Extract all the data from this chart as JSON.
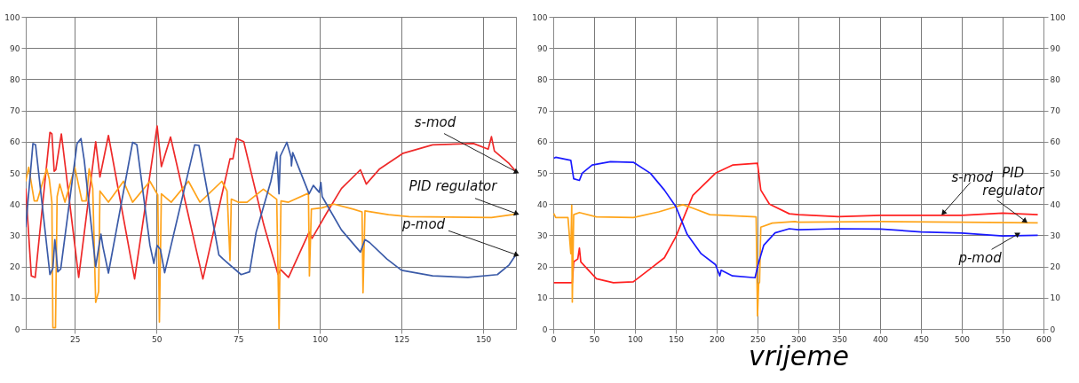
{
  "chart_data": [
    {
      "type": "line",
      "xlim": [
        10,
        160
      ],
      "xticks": [
        25,
        50,
        75,
        100,
        125,
        150
      ],
      "ylim": [
        0,
        100
      ],
      "yticks": [
        0,
        10,
        20,
        30,
        40,
        50,
        60,
        70,
        80,
        90,
        100
      ],
      "grid": true,
      "series": [
        {
          "color": "#ee2a2a",
          "x": [
            10,
            11.7,
            12.9,
            17.4,
            18,
            18.7,
            19.2,
            20.9,
            26.2,
            31.4,
            32.7,
            35.3,
            43.3,
            50.2,
            51.5,
            54.3,
            64.2,
            72.5,
            73.4,
            74.5,
            76.7,
            82.8,
            87.2,
            88,
            90.4,
            96.7,
            97.6,
            102,
            106.6,
            112.4,
            114.2,
            118.3,
            125.5,
            134.5,
            147,
            151.5,
            152.5,
            153.4,
            157.9,
            160
          ],
          "values": [
            45,
            17,
            16.5,
            63,
            62.5,
            50.5,
            51,
            62.5,
            16.5,
            60,
            48.7,
            62,
            16,
            65,
            52,
            61.5,
            16,
            54.5,
            54.5,
            61,
            60,
            33.5,
            17.5,
            19,
            16.5,
            31,
            29,
            37,
            45,
            51,
            46.4,
            51.3,
            56.3,
            59,
            59.4,
            57.6,
            61.6,
            57,
            53,
            50.4
          ]
        },
        {
          "color": "#ffa31a",
          "x": [
            10,
            10.9,
            12.6,
            13.5,
            16.4,
            17.2,
            18,
            18.3,
            19.1,
            19.6,
            20.4,
            22,
            25,
            27.2,
            28.5,
            29.4,
            30.5,
            31.4,
            32.3,
            32.7,
            35.3,
            39.9,
            42.7,
            48,
            50.4,
            50.9,
            51.5,
            54.5,
            59.8,
            63.3,
            70,
            71.6,
            72.5,
            72.9,
            75,
            77.7,
            82.7,
            86.8,
            87.5,
            88.1,
            90.4,
            96.5,
            96.8,
            97.4,
            100.7,
            104.3,
            110.2,
            112.9,
            113.2,
            113.8,
            121,
            127.3,
            152.5,
            158.8,
            160
          ],
          "values": [
            47.3,
            51.8,
            41,
            41,
            51.3,
            48,
            40.6,
            0.4,
            0.4,
            42.4,
            46.4,
            40.6,
            51.8,
            41,
            41,
            51.3,
            45,
            8.5,
            12,
            44.2,
            40.6,
            47.3,
            40.6,
            47.3,
            42.9,
            2.2,
            43.3,
            40.6,
            47.3,
            40.6,
            47.3,
            44.2,
            21.9,
            41.6,
            40.6,
            40.6,
            44.8,
            41.5,
            0,
            41,
            40.6,
            43.5,
            17,
            38.4,
            38.8,
            40,
            38.4,
            37.5,
            11.6,
            37.8,
            36.6,
            36,
            35.7,
            36.6,
            37
          ]
        },
        {
          "color": "#3b5ba8",
          "x": [
            10,
            12.2,
            13,
            17.4,
            18.3,
            18.9,
            19.3,
            19.8,
            20.7,
            25.7,
            26.9,
            27.9,
            31.4,
            33,
            33.6,
            35.3,
            42.7,
            44,
            48,
            49.2,
            50.2,
            51.2,
            52.5,
            61.7,
            63,
            69.1,
            70.4,
            75.9,
            78.5,
            80.5,
            85,
            86.8,
            87.5,
            87.9,
            89.9,
            91.2,
            91.3,
            91.7,
            96.7,
            98,
            99.8,
            100.3,
            100.7,
            106.6,
            112.4,
            113.8,
            115.2,
            120.5,
            125,
            134.5,
            145.3,
            154.3,
            157.9,
            160
          ],
          "values": [
            32.6,
            59.4,
            59,
            17.4,
            19.5,
            28.6,
            24.6,
            18.3,
            19.2,
            59.4,
            61,
            54,
            20,
            30.4,
            26.4,
            17.9,
            59.8,
            59,
            26.8,
            21,
            26.8,
            25.5,
            18,
            59,
            58.8,
            23.7,
            22.4,
            17.4,
            18.3,
            31,
            47.3,
            56.7,
            43.3,
            55.4,
            59.8,
            55,
            52.2,
            56.5,
            43.3,
            46,
            43.8,
            46.9,
            42.4,
            31.7,
            24.6,
            28.6,
            27.7,
            22.4,
            18.8,
            17,
            16.5,
            17.4,
            20.5,
            23.8
          ]
        }
      ],
      "annotations": [
        {
          "text": "s-mod",
          "x": 160,
          "y": 50.4
        },
        {
          "text": "PID regulator",
          "x": 160,
          "y": 37
        },
        {
          "text": "p-mod",
          "x": 160,
          "y": 23.8
        }
      ]
    },
    {
      "type": "line",
      "xlabel": "vrijeme",
      "xlim": [
        0,
        600
      ],
      "xticks": [
        0,
        50,
        100,
        150,
        200,
        250,
        300,
        350,
        400,
        450,
        500,
        550,
        600
      ],
      "ylim": [
        0,
        100
      ],
      "yticks": [
        0,
        10,
        20,
        30,
        40,
        50,
        60,
        70,
        80,
        90,
        100
      ],
      "y2lim": [
        0,
        100
      ],
      "y2ticks": [
        0,
        10,
        20,
        30,
        40,
        50,
        60,
        70,
        80,
        90,
        100
      ],
      "grid": true,
      "series": [
        {
          "color": "#ff2020",
          "x": [
            0.7,
            23.3,
            25,
            30,
            32,
            33.7,
            52.8,
            73.6,
            97.9,
            118.8,
            136,
            150,
            170.8,
            198.6,
            219.4,
            250,
            254,
            264.6,
            288.9,
            300,
            349,
            401,
            452,
            500,
            550,
            593
          ],
          "values": [
            14.8,
            14.8,
            21.5,
            22.4,
            25.9,
            21.5,
            16.1,
            14.8,
            15.1,
            19.3,
            22.8,
            29.5,
            42.8,
            49.9,
            52.5,
            53.1,
            44.5,
            40,
            36.9,
            36.6,
            36,
            36.4,
            36.4,
            36.4,
            37.1,
            36.6
          ]
        },
        {
          "color": "#ffa51a",
          "x": [
            0.7,
            3,
            18,
            21.5,
            22.6,
            23.3,
            25,
            32,
            52.8,
            98,
            129,
            158.6,
            170.8,
            191.7,
            248.3,
            250,
            251.4,
            252.5,
            254,
            268,
            295.8,
            300,
            401,
            500,
            593
          ],
          "values": [
            37,
            35.7,
            35.7,
            24.1,
            39.6,
            8.6,
            36.6,
            37.3,
            35.9,
            35.7,
            37.5,
            39.8,
            38.7,
            36.6,
            35.9,
            4.2,
            14.4,
            15,
            32.6,
            33.9,
            34.4,
            34.2,
            34.4,
            34.2,
            34
          ]
        },
        {
          "color": "#1a1aff",
          "x": [
            0.7,
            3,
            21.5,
            25,
            32,
            35.4,
            47.6,
            70,
            98,
            118.8,
            136,
            150,
            163.9,
            181,
            198.6,
            203.8,
            205.5,
            219.4,
            247,
            250.7,
            257.6,
            271.5,
            288.9,
            300,
            349,
            401,
            450,
            500,
            550,
            593
          ],
          "values": [
            54.7,
            55,
            54,
            48.1,
            47.6,
            49.9,
            52.5,
            53.6,
            53.4,
            49.9,
            44.5,
            39.2,
            30.3,
            24.1,
            20.6,
            17,
            18.8,
            17,
            16.4,
            20.6,
            26.8,
            30.8,
            32.1,
            31.8,
            32.1,
            32,
            31.1,
            30.7,
            29.8,
            30
          ]
        }
      ],
      "annotations": [
        {
          "text": "s-mod",
          "x": 478,
          "y": 37.3
        },
        {
          "text": "PID regulator",
          "x": 577,
          "y": 34.7
        },
        {
          "text": "p-mod",
          "x": 568,
          "y": 30.3
        }
      ]
    }
  ]
}
